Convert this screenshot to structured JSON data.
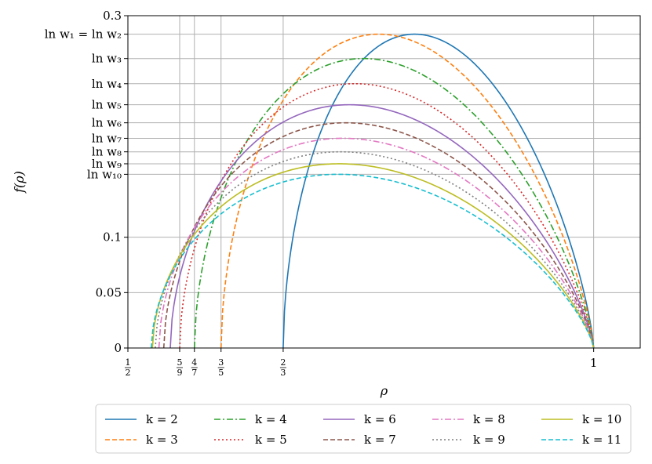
{
  "chart_data": {
    "type": "line",
    "xlabel": "ρ",
    "ylabel": "f(ρ)",
    "xlim": [
      0.5,
      1.05
    ],
    "ylim": [
      0,
      0.3
    ],
    "grid": true,
    "legend_position": "bottom-outside",
    "x_ticks": [
      {
        "value": 0.5,
        "num": "1",
        "den": "2"
      },
      {
        "value": 0.5556,
        "num": "5",
        "den": "9"
      },
      {
        "value": 0.5714,
        "num": "4",
        "den": "7"
      },
      {
        "value": 0.6,
        "num": "3",
        "den": "5"
      },
      {
        "value": 0.6667,
        "num": "2",
        "den": "3"
      },
      {
        "value": 1.0,
        "label": "1"
      }
    ],
    "y_ticks_numeric": [
      {
        "value": 0,
        "label": "0"
      },
      {
        "value": 0.05,
        "label": "0.05"
      },
      {
        "value": 0.1,
        "label": "0.1"
      },
      {
        "value": 0.3,
        "label": "0.3"
      }
    ],
    "y_ticks_named": [
      {
        "value": 0.2833,
        "label": "ln w₁ = ln w₂"
      },
      {
        "value": 0.2613,
        "label": "ln w₃"
      },
      {
        "value": 0.2386,
        "label": "ln w₄"
      },
      {
        "value": 0.2196,
        "label": "ln w₅"
      },
      {
        "value": 0.2033,
        "label": "ln w₆"
      },
      {
        "value": 0.1893,
        "label": "ln w₇"
      },
      {
        "value": 0.1771,
        "label": "ln w₈"
      },
      {
        "value": 0.1663,
        "label": "ln w₉"
      },
      {
        "value": 0.1568,
        "label": "ln w₁₀"
      }
    ],
    "series": [
      {
        "name": "k = 2",
        "color": "#1f77b4",
        "dash": "solid",
        "root": 0.6667,
        "peak_x": 0.83,
        "peak_y": 0.2833
      },
      {
        "name": "k = 3",
        "color": "#ff7f0e",
        "dash": "dashed",
        "root": 0.6,
        "peak_x": 0.78,
        "peak_y": 0.2833
      },
      {
        "name": "k = 4",
        "color": "#2ca02c",
        "dash": "dashdot",
        "root": 0.5714,
        "peak_x": 0.76,
        "peak_y": 0.2613
      },
      {
        "name": "k = 5",
        "color": "#d62728",
        "dash": "dotted",
        "root": 0.5556,
        "peak_x": 0.76,
        "peak_y": 0.2386
      },
      {
        "name": "k = 6",
        "color": "#9467bd",
        "dash": "solid",
        "root": 0.5455,
        "peak_x": 0.76,
        "peak_y": 0.2196
      },
      {
        "name": "k = 7",
        "color": "#8c564b",
        "dash": "dashed",
        "root": 0.5385,
        "peak_x": 0.76,
        "peak_y": 0.2033
      },
      {
        "name": "k = 8",
        "color": "#e377c2",
        "dash": "dashdot",
        "root": 0.5333,
        "peak_x": 0.76,
        "peak_y": 0.1893
      },
      {
        "name": "k = 9",
        "color": "#7f7f7f",
        "dash": "dotted",
        "root": 0.5294,
        "peak_x": 0.76,
        "peak_y": 0.1771
      },
      {
        "name": "k = 10",
        "color": "#bcbd22",
        "dash": "solid",
        "root": 0.5263,
        "peak_x": 0.76,
        "peak_y": 0.1663
      },
      {
        "name": "k = 11",
        "color": "#17becf",
        "dash": "dashed",
        "root": 0.525,
        "peak_x": 0.76,
        "peak_y": 0.1568
      }
    ]
  }
}
